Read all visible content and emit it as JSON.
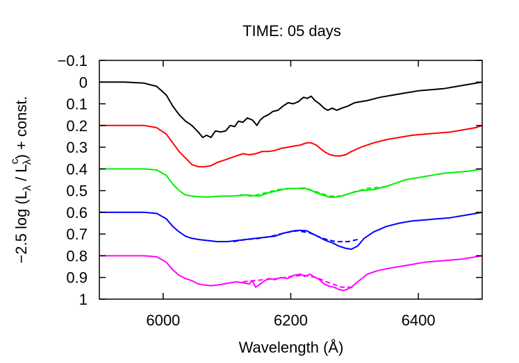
{
  "chart_data": {
    "type": "line",
    "title": "TIME: 05 days",
    "xlabel": "Wavelength (Å)",
    "ylabel_parts": {
      "prefix": "−2.5 log (L",
      "sub1": "λ",
      "mid": " / L",
      "sup": "c",
      "sub2": "λ",
      "suffix": ") + const."
    },
    "xlim": [
      5900,
      6500
    ],
    "ylim": [
      -0.1,
      1.0
    ],
    "y_inverted": true,
    "xticks": [
      6000,
      6200,
      6400
    ],
    "xtick_labels": [
      "6000",
      "6200",
      "6400"
    ],
    "yticks": [
      -0.1,
      0,
      0.1,
      0.2,
      0.3,
      0.4,
      0.5,
      0.6,
      0.7,
      0.8,
      0.9,
      1.0
    ],
    "ytick_labels": [
      "−0.1",
      "0",
      "0.1",
      "0.2",
      "0.3",
      "0.4",
      "0.5",
      "0.6",
      "0.7",
      "0.8",
      "0.9",
      "1"
    ],
    "grid": false,
    "legend": "none",
    "series": [
      {
        "color": "#000000",
        "style": "solid",
        "x": [
          5900,
          5940,
          5970,
          5990,
          6005,
          6015,
          6025,
          6035,
          6045,
          6055,
          6062,
          6068,
          6075,
          6082,
          6090,
          6098,
          6105,
          6112,
          6118,
          6125,
          6132,
          6140,
          6147,
          6152,
          6158,
          6165,
          6172,
          6180,
          6188,
          6196,
          6204,
          6212,
          6220,
          6226,
          6232,
          6238,
          6245,
          6252,
          6258,
          6265,
          6272,
          6280,
          6290,
          6300,
          6320,
          6340,
          6360,
          6380,
          6400,
          6420,
          6440,
          6460,
          6480,
          6500
        ],
        "y": [
          0,
          0,
          0.005,
          0.02,
          0.06,
          0.11,
          0.15,
          0.18,
          0.2,
          0.23,
          0.255,
          0.245,
          0.255,
          0.225,
          0.23,
          0.225,
          0.2,
          0.205,
          0.18,
          0.185,
          0.165,
          0.175,
          0.2,
          0.175,
          0.16,
          0.15,
          0.135,
          0.13,
          0.11,
          0.095,
          0.1,
          0.09,
          0.07,
          0.075,
          0.065,
          0.085,
          0.1,
          0.12,
          0.13,
          0.12,
          0.13,
          0.12,
          0.11,
          0.095,
          0.085,
          0.07,
          0.06,
          0.05,
          0.04,
          0.035,
          0.03,
          0.02,
          0.01,
          0
        ]
      },
      {
        "color": "#ff0000",
        "style": "solid",
        "x": [
          5900,
          5940,
          5970,
          5990,
          6005,
          6015,
          6025,
          6035,
          6045,
          6055,
          6065,
          6075,
          6085,
          6095,
          6105,
          6115,
          6125,
          6135,
          6145,
          6155,
          6165,
          6175,
          6185,
          6195,
          6205,
          6215,
          6225,
          6232,
          6240,
          6248,
          6255,
          6262,
          6270,
          6278,
          6286,
          6295,
          6310,
          6330,
          6350,
          6370,
          6390,
          6410,
          6430,
          6450,
          6470,
          6490,
          6500
        ],
        "y": [
          0.2,
          0.2,
          0.2,
          0.21,
          0.24,
          0.28,
          0.32,
          0.35,
          0.38,
          0.39,
          0.39,
          0.385,
          0.37,
          0.36,
          0.35,
          0.34,
          0.33,
          0.335,
          0.33,
          0.32,
          0.32,
          0.315,
          0.305,
          0.3,
          0.295,
          0.29,
          0.28,
          0.28,
          0.29,
          0.31,
          0.325,
          0.335,
          0.34,
          0.34,
          0.335,
          0.32,
          0.3,
          0.28,
          0.265,
          0.255,
          0.245,
          0.24,
          0.235,
          0.23,
          0.22,
          0.21,
          0.2
        ]
      },
      {
        "color": "#00ee00",
        "style": "solid",
        "x": [
          5900,
          5940,
          5970,
          5990,
          6005,
          6015,
          6025,
          6035,
          6045,
          6055,
          6070,
          6090,
          6110,
          6130,
          6150,
          6165,
          6180,
          6195,
          6210,
          6220,
          6230,
          6240,
          6250,
          6260,
          6270,
          6280,
          6295,
          6310,
          6330,
          6350,
          6365,
          6380,
          6400,
          6420,
          6440,
          6460,
          6480,
          6500
        ],
        "y": [
          0.4,
          0.4,
          0.4,
          0.405,
          0.43,
          0.47,
          0.5,
          0.52,
          0.525,
          0.528,
          0.53,
          0.525,
          0.525,
          0.52,
          0.525,
          0.51,
          0.5,
          0.49,
          0.49,
          0.488,
          0.495,
          0.51,
          0.52,
          0.53,
          0.53,
          0.525,
          0.51,
          0.5,
          0.495,
          0.48,
          0.465,
          0.45,
          0.44,
          0.43,
          0.42,
          0.415,
          0.41,
          0.4
        ]
      },
      {
        "color": "#00ee00",
        "style": "dashed",
        "x": [
          6120,
          6140,
          6160,
          6180,
          6200,
          6220,
          6240,
          6260,
          6280,
          6300,
          6320,
          6340,
          6355
        ],
        "y": [
          0.52,
          0.525,
          0.51,
          0.495,
          0.49,
          0.49,
          0.505,
          0.525,
          0.525,
          0.505,
          0.49,
          0.485,
          0.48
        ]
      },
      {
        "color": "#0000ff",
        "style": "solid",
        "x": [
          5900,
          5940,
          5970,
          5990,
          6005,
          6015,
          6025,
          6035,
          6045,
          6055,
          6070,
          6085,
          6100,
          6115,
          6130,
          6145,
          6160,
          6175,
          6190,
          6205,
          6215,
          6225,
          6235,
          6245,
          6255,
          6265,
          6275,
          6285,
          6295,
          6305,
          6315,
          6330,
          6350,
          6370,
          6390,
          6410,
          6430,
          6450,
          6470,
          6490,
          6500
        ],
        "y": [
          0.6,
          0.6,
          0.6,
          0.605,
          0.63,
          0.665,
          0.69,
          0.71,
          0.72,
          0.725,
          0.73,
          0.735,
          0.735,
          0.73,
          0.725,
          0.72,
          0.715,
          0.71,
          0.695,
          0.685,
          0.683,
          0.685,
          0.7,
          0.715,
          0.73,
          0.74,
          0.755,
          0.765,
          0.77,
          0.755,
          0.72,
          0.69,
          0.665,
          0.65,
          0.64,
          0.635,
          0.63,
          0.625,
          0.615,
          0.605,
          0.6
        ]
      },
      {
        "color": "#0000ff",
        "style": "dashed",
        "x": [
          6110,
          6130,
          6150,
          6170,
          6190,
          6210,
          6230,
          6250,
          6270,
          6290,
          6305
        ],
        "y": [
          0.735,
          0.725,
          0.72,
          0.71,
          0.695,
          0.685,
          0.695,
          0.72,
          0.735,
          0.735,
          0.725
        ]
      },
      {
        "color": "#ff00ff",
        "style": "solid",
        "x": [
          5900,
          5940,
          5970,
          5990,
          6005,
          6015,
          6025,
          6035,
          6045,
          6055,
          6065,
          6075,
          6085,
          6095,
          6105,
          6115,
          6125,
          6135,
          6140,
          6145,
          6150,
          6157,
          6165,
          6175,
          6185,
          6195,
          6205,
          6215,
          6222,
          6230,
          6238,
          6245,
          6252,
          6260,
          6268,
          6275,
          6282,
          6288,
          6295,
          6305,
          6320,
          6335,
          6350,
          6370,
          6390,
          6410,
          6430,
          6450,
          6470,
          6490,
          6500
        ],
        "y": [
          0.8,
          0.8,
          0.8,
          0.805,
          0.83,
          0.865,
          0.89,
          0.905,
          0.915,
          0.93,
          0.935,
          0.938,
          0.935,
          0.93,
          0.925,
          0.92,
          0.925,
          0.93,
          0.915,
          0.945,
          0.935,
          0.92,
          0.905,
          0.91,
          0.9,
          0.905,
          0.89,
          0.885,
          0.895,
          0.885,
          0.9,
          0.91,
          0.93,
          0.94,
          0.945,
          0.955,
          0.96,
          0.955,
          0.945,
          0.92,
          0.885,
          0.87,
          0.86,
          0.85,
          0.84,
          0.83,
          0.825,
          0.82,
          0.815,
          0.805,
          0.8
        ]
      },
      {
        "color": "#ff00ff",
        "style": "dashed",
        "x": [
          6125,
          6140,
          6160,
          6180,
          6200,
          6220,
          6240,
          6260,
          6280,
          6300
        ],
        "y": [
          0.92,
          0.915,
          0.91,
          0.905,
          0.895,
          0.89,
          0.9,
          0.925,
          0.945,
          0.945
        ]
      }
    ]
  }
}
